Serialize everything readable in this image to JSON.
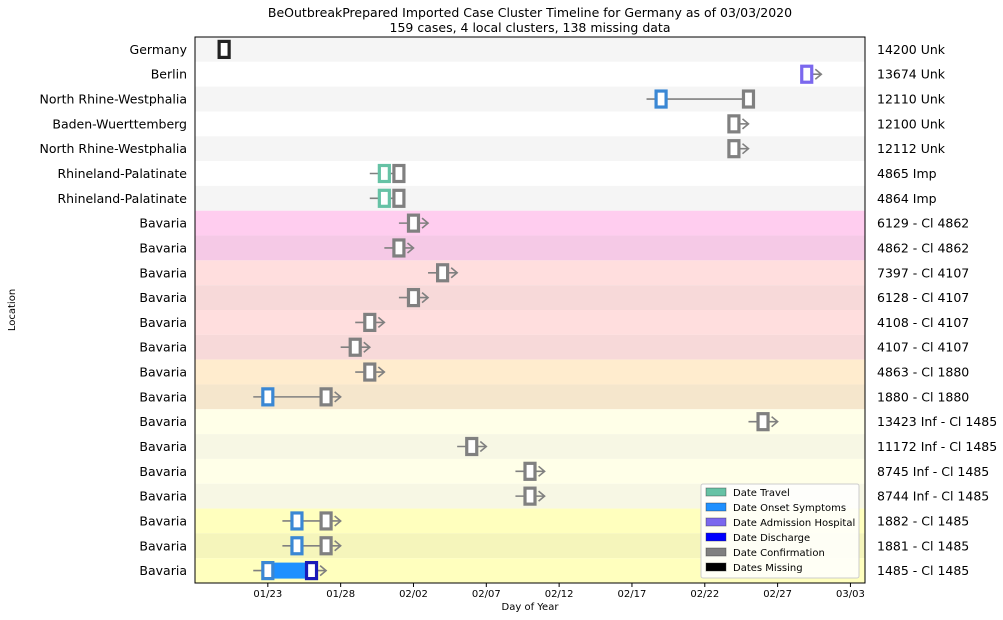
{
  "chart_data": {
    "type": "timeline",
    "title": "BeOutbreakPrepared Imported Case Cluster Timeline for Germany as of 03/03/2020",
    "subtitle": "159 cases, 4 local clusters, 138 missing data",
    "xlabel": "Day of Year",
    "ylabel": "Location",
    "x_ticks": [
      "01/23",
      "01/28",
      "02/02",
      "02/07",
      "02/12",
      "02/17",
      "02/22",
      "02/27",
      "03/03"
    ],
    "x_range": [
      "2020-01-18",
      "2020-03-04"
    ],
    "legend_position": "bottom-right",
    "legend": [
      {
        "label": "Date Travel",
        "color": "#66c2a5"
      },
      {
        "label": "Date Onset Symptoms",
        "color": "#1e90ff"
      },
      {
        "label": "Date Admission Hospital",
        "color": "#7b68ee"
      },
      {
        "label": "Date Discharge",
        "color": "#0000ff"
      },
      {
        "label": "Date Confirmation",
        "color": "#808080"
      },
      {
        "label": "Dates Missing",
        "color": "#000000"
      }
    ],
    "colors": {
      "travel": "#66c2a5",
      "onset": "#3a87d4",
      "admission": "#7b68ee",
      "discharge": "#1a1ab8",
      "confirmation": "#808080",
      "missing": "#222222",
      "line": "#808080"
    },
    "rows": [
      {
        "location": "Germany",
        "id": "14200 Unk",
        "band": "#f5f5f5",
        "markers": [
          {
            "type": "missing",
            "date": "2020-01-20"
          }
        ]
      },
      {
        "location": "Berlin",
        "id": "13674 Unk",
        "band": "#ffffff",
        "line": [
          "2020-02-29",
          "2020-03-01"
        ],
        "markers": [
          {
            "type": "admission",
            "date": "2020-02-29"
          }
        ]
      },
      {
        "location": "North Rhine-Westphalia",
        "id": "12110 Unk",
        "band": "#f5f5f5",
        "line": [
          "2020-02-18",
          "2020-02-25"
        ],
        "markers": [
          {
            "type": "onset",
            "date": "2020-02-19"
          },
          {
            "type": "confirmation",
            "date": "2020-02-25"
          }
        ]
      },
      {
        "location": "Baden-Wuerttemberg",
        "id": "12100 Unk",
        "band": "#ffffff",
        "line": [
          "2020-02-24",
          "2020-02-25"
        ],
        "markers": [
          {
            "type": "confirmation",
            "date": "2020-02-24"
          }
        ]
      },
      {
        "location": "North Rhine-Westphalia",
        "id": "12112 Unk",
        "band": "#f5f5f5",
        "line": [
          "2020-02-24",
          "2020-02-25"
        ],
        "markers": [
          {
            "type": "confirmation",
            "date": "2020-02-24"
          }
        ]
      },
      {
        "location": "Rhineland-Palatinate",
        "id": "4865 Imp",
        "band": "#ffffff",
        "line": [
          "2020-01-30",
          "2020-02-01"
        ],
        "markers": [
          {
            "type": "travel",
            "date": "2020-01-31"
          },
          {
            "type": "confirmation",
            "date": "2020-02-01"
          }
        ]
      },
      {
        "location": "Rhineland-Palatinate",
        "id": "4864 Imp",
        "band": "#f5f5f5",
        "line": [
          "2020-01-30",
          "2020-02-01"
        ],
        "markers": [
          {
            "type": "travel",
            "date": "2020-01-31"
          },
          {
            "type": "confirmation",
            "date": "2020-02-01"
          }
        ]
      },
      {
        "location": "Bavaria",
        "id": "6129 - Cl 4862",
        "band": "#ffcdef",
        "line": [
          "2020-02-01",
          "2020-02-03"
        ],
        "markers": [
          {
            "type": "confirmation",
            "date": "2020-02-02"
          }
        ]
      },
      {
        "location": "Bavaria",
        "id": "4862 - Cl 4862",
        "band": "#f5c9e6",
        "line": [
          "2020-01-31",
          "2020-02-02"
        ],
        "markers": [
          {
            "type": "confirmation",
            "date": "2020-02-01"
          }
        ]
      },
      {
        "location": "Bavaria",
        "id": "7397 - Cl 4107",
        "band": "#ffdede",
        "line": [
          "2020-02-03",
          "2020-02-05"
        ],
        "markers": [
          {
            "type": "confirmation",
            "date": "2020-02-04"
          }
        ]
      },
      {
        "location": "Bavaria",
        "id": "6128 - Cl 4107",
        "band": "#f7d9d9",
        "line": [
          "2020-02-01",
          "2020-02-03"
        ],
        "markers": [
          {
            "type": "confirmation",
            "date": "2020-02-02"
          }
        ]
      },
      {
        "location": "Bavaria",
        "id": "4108 - Cl 4107",
        "band": "#ffdede",
        "line": [
          "2020-01-29",
          "2020-01-31"
        ],
        "markers": [
          {
            "type": "confirmation",
            "date": "2020-01-30"
          }
        ]
      },
      {
        "location": "Bavaria",
        "id": "4107 - Cl 4107",
        "band": "#f7d9d9",
        "line": [
          "2020-01-28",
          "2020-01-30"
        ],
        "markers": [
          {
            "type": "confirmation",
            "date": "2020-01-29"
          }
        ]
      },
      {
        "location": "Bavaria",
        "id": "4863 - Cl 1880",
        "band": "#ffecce",
        "line": [
          "2020-01-29",
          "2020-01-31"
        ],
        "markers": [
          {
            "type": "confirmation",
            "date": "2020-01-30"
          }
        ]
      },
      {
        "location": "Bavaria",
        "id": "1880 - Cl 1880",
        "band": "#f5e6cc",
        "line": [
          "2020-01-22",
          "2020-01-28"
        ],
        "markers": [
          {
            "type": "onset",
            "date": "2020-01-23"
          },
          {
            "type": "confirmation",
            "date": "2020-01-27"
          }
        ]
      },
      {
        "location": "Bavaria",
        "id": "13423 Inf - Cl 1485",
        "band": "#ffffe8",
        "line": [
          "2020-02-25",
          "2020-02-27"
        ],
        "markers": [
          {
            "type": "confirmation",
            "date": "2020-02-26"
          }
        ]
      },
      {
        "location": "Bavaria",
        "id": "11172 Inf - Cl 1485",
        "band": "#f7f7e4",
        "line": [
          "2020-02-05",
          "2020-02-07"
        ],
        "markers": [
          {
            "type": "confirmation",
            "date": "2020-02-06"
          }
        ]
      },
      {
        "location": "Bavaria",
        "id": "8745 Inf - Cl 1485",
        "band": "#ffffe8",
        "line": [
          "2020-02-09",
          "2020-02-11"
        ],
        "markers": [
          {
            "type": "confirmation",
            "date": "2020-02-10"
          }
        ]
      },
      {
        "location": "Bavaria",
        "id": "8744 Inf - Cl 1485",
        "band": "#f7f7e4",
        "line": [
          "2020-02-09",
          "2020-02-11"
        ],
        "markers": [
          {
            "type": "confirmation",
            "date": "2020-02-10"
          }
        ]
      },
      {
        "location": "Bavaria",
        "id": "1882 - Cl 1485",
        "band": "#ffffbe",
        "line": [
          "2020-01-24",
          "2020-01-28"
        ],
        "markers": [
          {
            "type": "onset",
            "date": "2020-01-25"
          },
          {
            "type": "confirmation",
            "date": "2020-01-27"
          }
        ]
      },
      {
        "location": "Bavaria",
        "id": "1881 - Cl 1485",
        "band": "#f5f5bb",
        "line": [
          "2020-01-24",
          "2020-01-28"
        ],
        "markers": [
          {
            "type": "onset",
            "date": "2020-01-25"
          },
          {
            "type": "confirmation",
            "date": "2020-01-27"
          }
        ]
      },
      {
        "location": "Bavaria",
        "id": "1485 - Cl 1485",
        "band": "#ffffbe",
        "line": [
          "2020-01-22",
          "2020-01-27"
        ],
        "span": {
          "type": "onset",
          "from": "2020-01-23",
          "to": "2020-01-26"
        },
        "markers": [
          {
            "type": "onset",
            "date": "2020-01-23"
          },
          {
            "type": "discharge",
            "date": "2020-01-26"
          }
        ]
      }
    ]
  }
}
